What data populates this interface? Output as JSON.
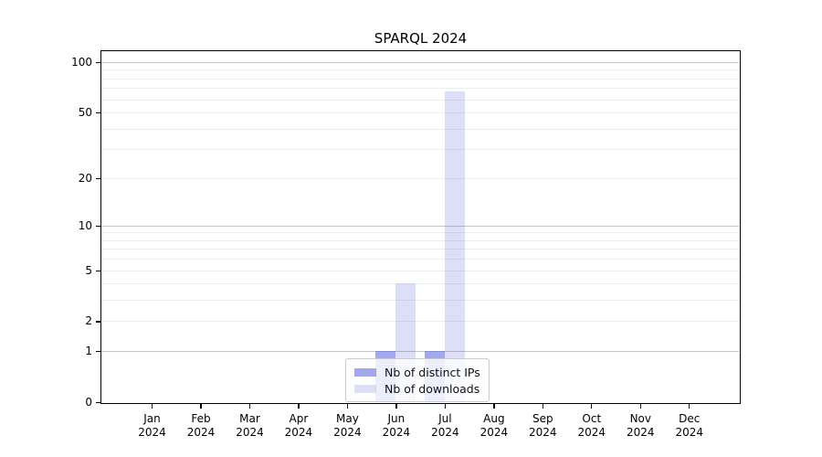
{
  "chart_data": {
    "type": "bar",
    "title": "SPARQL 2024",
    "categories": [
      "Jan 2024",
      "Feb 2024",
      "Mar 2024",
      "Apr 2024",
      "May 2024",
      "Jun 2024",
      "Jul 2024",
      "Aug 2024",
      "Sep 2024",
      "Oct 2024",
      "Nov 2024",
      "Dec 2024"
    ],
    "series": [
      {
        "name": "Nb of distinct IPs",
        "color": "rgba(100,110,225,0.6)",
        "values": [
          0,
          0,
          0,
          0,
          0,
          1,
          1,
          0,
          0,
          0,
          0,
          0
        ]
      },
      {
        "name": "Nb of downloads",
        "color": "rgba(100,110,225,0.22)",
        "values": [
          0,
          0,
          0,
          0,
          0,
          4,
          67,
          0,
          0,
          0,
          0,
          0
        ]
      }
    ],
    "xlabel": "",
    "ylabel": "",
    "yscale": "log10(1+y)",
    "ylim": [
      0,
      115
    ],
    "yticks": [
      0,
      1,
      2,
      5,
      10,
      20,
      50,
      100
    ],
    "y_major_gridlines": [
      1,
      10,
      100
    ],
    "y_minor_gridlines": [
      2,
      3,
      4,
      5,
      6,
      7,
      8,
      9,
      20,
      30,
      40,
      50,
      60,
      70,
      80,
      90
    ],
    "grid": {
      "major_color": "#c3c3c3",
      "minor_color": "#ececec"
    },
    "legend": {
      "position": "lower center",
      "background": "rgba(255,255,255,0.8)",
      "border_color": "#cccccc"
    }
  }
}
